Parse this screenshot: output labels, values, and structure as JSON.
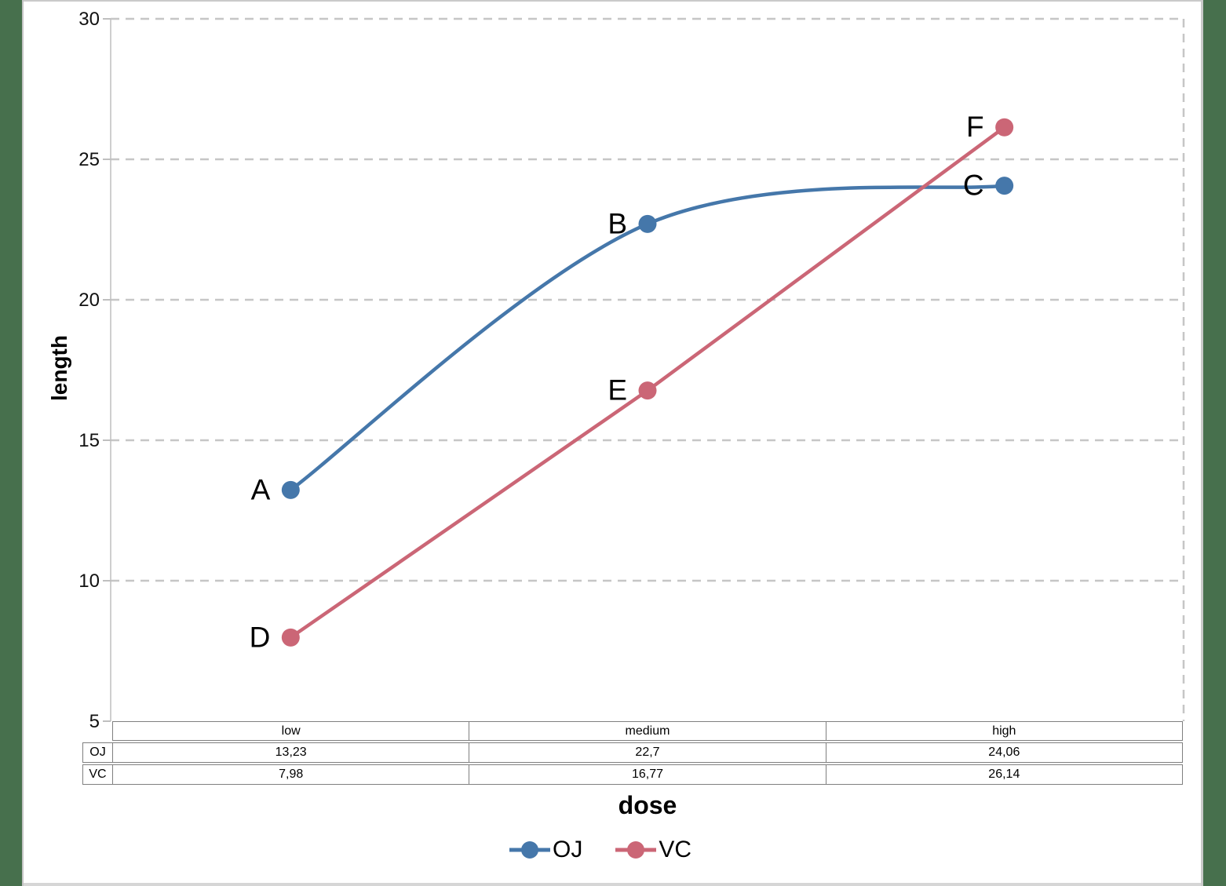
{
  "page": {
    "background": "#ffffff",
    "side_strip_color": "#47704D",
    "border_color": "#CACACA"
  },
  "chart_data": {
    "type": "line",
    "categories": [
      "low",
      "medium",
      "high"
    ],
    "series": [
      {
        "name": "OJ",
        "color": "#4577AA",
        "values": [
          13.23,
          22.7,
          24.06
        ],
        "point_labels": [
          "A",
          "B",
          "C"
        ],
        "smooth": true
      },
      {
        "name": "VC",
        "color": "#CB6676",
        "values": [
          7.98,
          16.77,
          26.14
        ],
        "point_labels": [
          "D",
          "E",
          "F"
        ],
        "smooth": false
      }
    ],
    "title": "",
    "xlabel": "dose",
    "ylabel": "length",
    "ylim": [
      5,
      30
    ],
    "yticks": [
      30,
      25,
      20,
      15,
      10,
      5
    ],
    "grid": "horizontal-dashed",
    "grid_color": "#C6C6C6",
    "axis_color": "#BFBFBF",
    "legend_position": "bottom"
  },
  "table": {
    "header": [
      "low",
      "medium",
      "high"
    ],
    "rows": [
      {
        "label": "OJ",
        "values": [
          "13,23",
          "22,7",
          "24,06"
        ]
      },
      {
        "label": "VC",
        "values": [
          "7,98",
          "16,77",
          "26,14"
        ]
      }
    ]
  },
  "legend": {
    "items": [
      {
        "label": "OJ",
        "color": "#4577AA"
      },
      {
        "label": "VC",
        "color": "#CB6676"
      }
    ]
  }
}
